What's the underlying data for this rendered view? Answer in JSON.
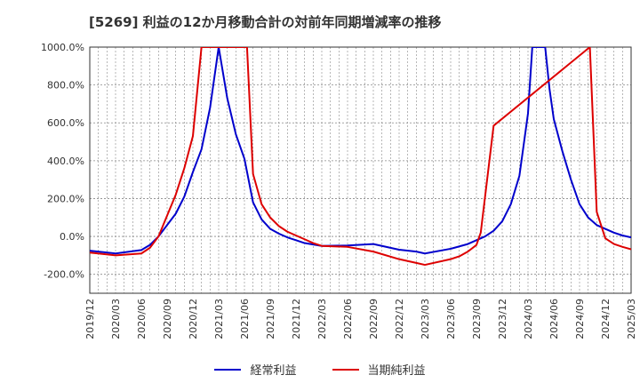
{
  "chart_data": {
    "type": "line",
    "title": "[5269]  利益の12か月移動合計の対前年同期増減率の推移",
    "ylim": [
      -300,
      1000
    ],
    "y_ticks": [
      1000,
      800,
      600,
      400,
      200,
      0,
      -200
    ],
    "y_tick_labels": [
      "1000.0%",
      "800.0%",
      "600.0%",
      "400.0%",
      "200.0%",
      "0.0%",
      "-200.0%"
    ],
    "x_tick_labels": [
      "2019/12",
      "2020/03",
      "2020/06",
      "2020/09",
      "2020/12",
      "2021/03",
      "2021/06",
      "2021/09",
      "2021/12",
      "2022/03",
      "2022/06",
      "2022/09",
      "2022/12",
      "2023/03",
      "2023/06",
      "2023/09",
      "2023/12",
      "2024/03",
      "2024/06",
      "2024/09",
      "2024/12",
      "2025/03"
    ],
    "grid": true,
    "legend_position": "bottom",
    "series": [
      {
        "name": "経常利益",
        "color": "#0000cc",
        "points": [
          [
            0,
            -75
          ],
          [
            3,
            -90
          ],
          [
            6,
            -72
          ],
          [
            7,
            -45
          ],
          [
            8,
            0
          ],
          [
            9,
            60
          ],
          [
            10,
            120
          ],
          [
            11,
            210
          ],
          [
            12,
            340
          ],
          [
            13,
            460
          ],
          [
            14,
            680
          ],
          [
            15,
            1000
          ],
          [
            16,
            730
          ],
          [
            17,
            540
          ],
          [
            18,
            410
          ],
          [
            19,
            180
          ],
          [
            20,
            90
          ],
          [
            21,
            40
          ],
          [
            22,
            15
          ],
          [
            23,
            -5
          ],
          [
            24,
            -20
          ],
          [
            25,
            -35
          ],
          [
            27,
            -50
          ],
          [
            30,
            -48
          ],
          [
            33,
            -40
          ],
          [
            36,
            -70
          ],
          [
            38,
            -80
          ],
          [
            39,
            -90
          ],
          [
            42,
            -65
          ],
          [
            44,
            -40
          ],
          [
            45,
            -20
          ],
          [
            46,
            0
          ],
          [
            47,
            30
          ],
          [
            48,
            80
          ],
          [
            49,
            170
          ],
          [
            50,
            320
          ],
          [
            51,
            650
          ],
          [
            51.5,
            1000
          ],
          [
            53,
            1000
          ],
          [
            53.5,
            780
          ],
          [
            54,
            620
          ],
          [
            55,
            450
          ],
          [
            56,
            300
          ],
          [
            57,
            170
          ],
          [
            58,
            100
          ],
          [
            59,
            60
          ],
          [
            60,
            40
          ],
          [
            61,
            20
          ],
          [
            62,
            5
          ],
          [
            63,
            -5
          ]
        ]
      },
      {
        "name": "当期純利益",
        "color": "#dd0000",
        "points": [
          [
            0,
            -85
          ],
          [
            3,
            -100
          ],
          [
            6,
            -90
          ],
          [
            7,
            -60
          ],
          [
            8,
            0
          ],
          [
            9,
            110
          ],
          [
            10,
            220
          ],
          [
            11,
            360
          ],
          [
            12,
            530
          ],
          [
            13,
            1000
          ],
          [
            18.3,
            1000
          ],
          [
            19,
            330
          ],
          [
            20,
            170
          ],
          [
            21,
            100
          ],
          [
            22,
            55
          ],
          [
            23,
            25
          ],
          [
            24,
            5
          ],
          [
            25,
            -15
          ],
          [
            26,
            -35
          ],
          [
            27,
            -50
          ],
          [
            30,
            -55
          ],
          [
            33,
            -80
          ],
          [
            36,
            -120
          ],
          [
            38,
            -140
          ],
          [
            39,
            -150
          ],
          [
            42,
            -120
          ],
          [
            43,
            -105
          ],
          [
            44,
            -80
          ],
          [
            45,
            -45
          ],
          [
            45.5,
            20
          ],
          [
            47,
            585
          ],
          [
            58.2,
            1000
          ],
          [
            59,
            130
          ],
          [
            60,
            -10
          ],
          [
            61,
            -40
          ],
          [
            62,
            -55
          ],
          [
            63,
            -68
          ]
        ]
      }
    ]
  }
}
